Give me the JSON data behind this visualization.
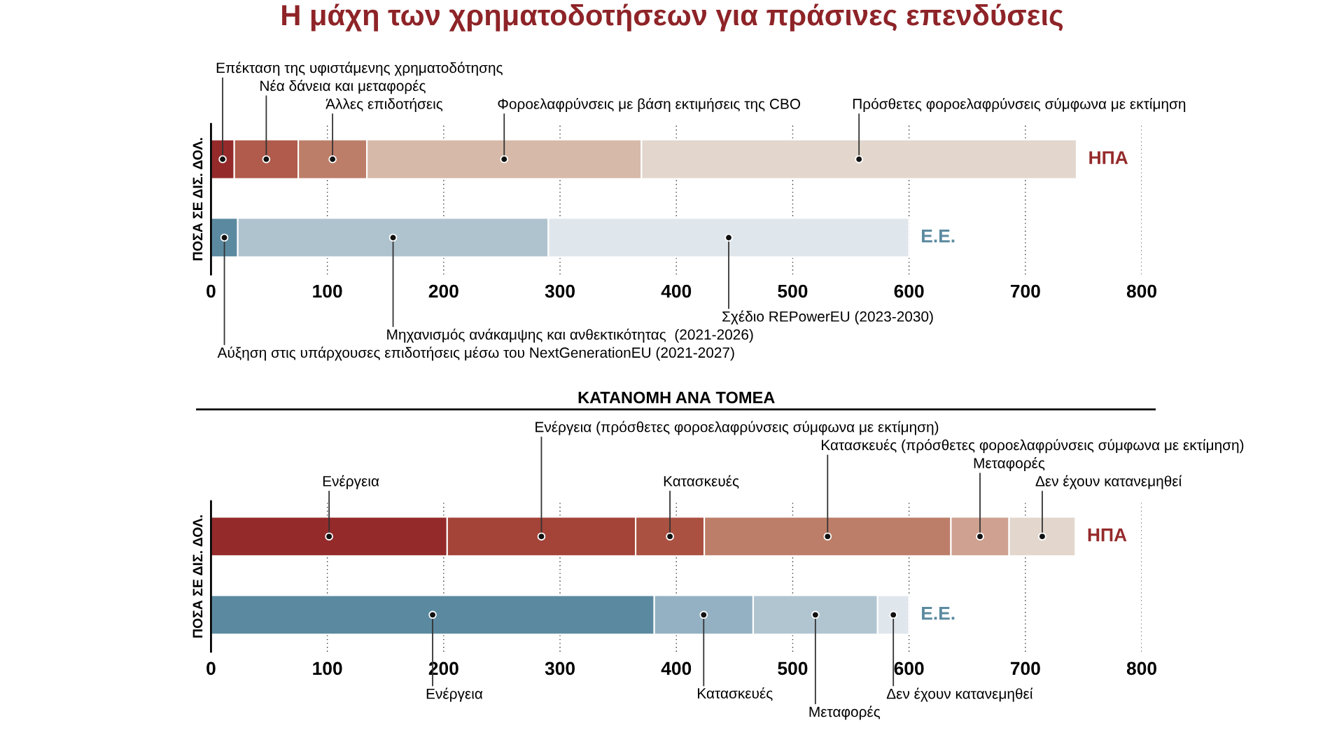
{
  "chart_data": [
    {
      "type": "bar",
      "orientation": "horizontal",
      "stacked": true,
      "title": "Η μάχη των χρηματοδοτήσεων για πράσινες επενδύσεις",
      "ylabel": "ΠΟΣΑ ΣΕ ΔΙΣ. ΔΟΛ.",
      "categories": [
        "ΗΠΑ",
        "Ε.Ε."
      ],
      "xlim": [
        0,
        800
      ],
      "xticks": [
        0,
        100,
        200,
        300,
        400,
        500,
        600,
        700,
        800
      ],
      "grid": "x",
      "series": [
        {
          "name": "Επέκταση της υφιστάμενης χρηματοδότησης",
          "color": "#952a2b",
          "values": [
            20,
            null
          ]
        },
        {
          "name": "Νέα δάνεια και μεταφορές",
          "color": "#b05b4c",
          "values": [
            55,
            null
          ]
        },
        {
          "name": "Άλλες επιδοτήσεις",
          "color": "#bd7e69",
          "values": [
            59,
            null
          ]
        },
        {
          "name": "Φοροελαφρύνσεις με βάση εκτιμήσεις της CBO",
          "color": "#d6b9a8",
          "values": [
            236,
            null
          ]
        },
        {
          "name": "Πρόσθετες φοροελαφρύνσεις σύμφωνα με εκτίμηση",
          "color": "#e3d7cd",
          "values": [
            374,
            null
          ]
        },
        {
          "name": "Αύξηση στις υπάρχουσες επιδοτήσεις μέσω του NextGenerationEU (2021-2027)",
          "color": "#5b8aa0",
          "values": [
            null,
            23
          ]
        },
        {
          "name": "Μηχανισμός ανάκαμψης και ανθεκτικότητας  (2021-2026)",
          "color": "#afc3cf",
          "values": [
            null,
            267
          ]
        },
        {
          "name": "Σχέδιο REPowerEU (2023-2030)",
          "color": "#dfe6ec",
          "values": [
            null,
            310
          ]
        }
      ]
    },
    {
      "type": "bar",
      "orientation": "horizontal",
      "stacked": true,
      "title": "ΚΑΤΑΝΟΜΗ ΑΝΑ ΤΟΜΕΑ",
      "ylabel": "ΠΟΣΑ ΣΕ ΔΙΣ. ΔΟΛ.",
      "categories": [
        "ΗΠΑ",
        "Ε.Ε."
      ],
      "xlim": [
        0,
        800
      ],
      "xticks": [
        0,
        100,
        200,
        300,
        400,
        500,
        600,
        700,
        800
      ],
      "grid": "x",
      "series": [
        {
          "name": "Ενέργεια",
          "color": "#952a2b",
          "values": [
            203,
            null
          ]
        },
        {
          "name": "Ενέργεια (πρόσθετες φοροελαφρύνσεις σύμφωνα με εκτίμηση)",
          "color": "#a44338",
          "values": [
            162,
            null
          ]
        },
        {
          "name": "Κατασκευές",
          "color": "#ab5141",
          "values": [
            59,
            null
          ]
        },
        {
          "name": "Κατασκευές (πρόσθετες φοροελαφρύνσεις σύμφωνα με εκτίμηση)",
          "color": "#bd7e69",
          "values": [
            212,
            null
          ]
        },
        {
          "name": "Μεταφορές",
          "color": "#cfa190",
          "values": [
            50,
            null
          ]
        },
        {
          "name": "Δεν έχουν κατανεμηθεί",
          "color": "#e3d7cd",
          "values": [
            57,
            null
          ]
        },
        {
          "name": "Ενέργεια",
          "color": "#5b8aa0",
          "values": [
            null,
            381
          ]
        },
        {
          "name": "Κατασκευές",
          "color": "#93b1c2",
          "values": [
            null,
            85
          ]
        },
        {
          "name": "Μεταφορές",
          "color": "#b1c5d1",
          "values": [
            null,
            107
          ]
        },
        {
          "name": "Δεν έχουν κατανεμηθεί",
          "color": "#dfe6ec",
          "values": [
            null,
            27
          ]
        }
      ]
    }
  ]
}
